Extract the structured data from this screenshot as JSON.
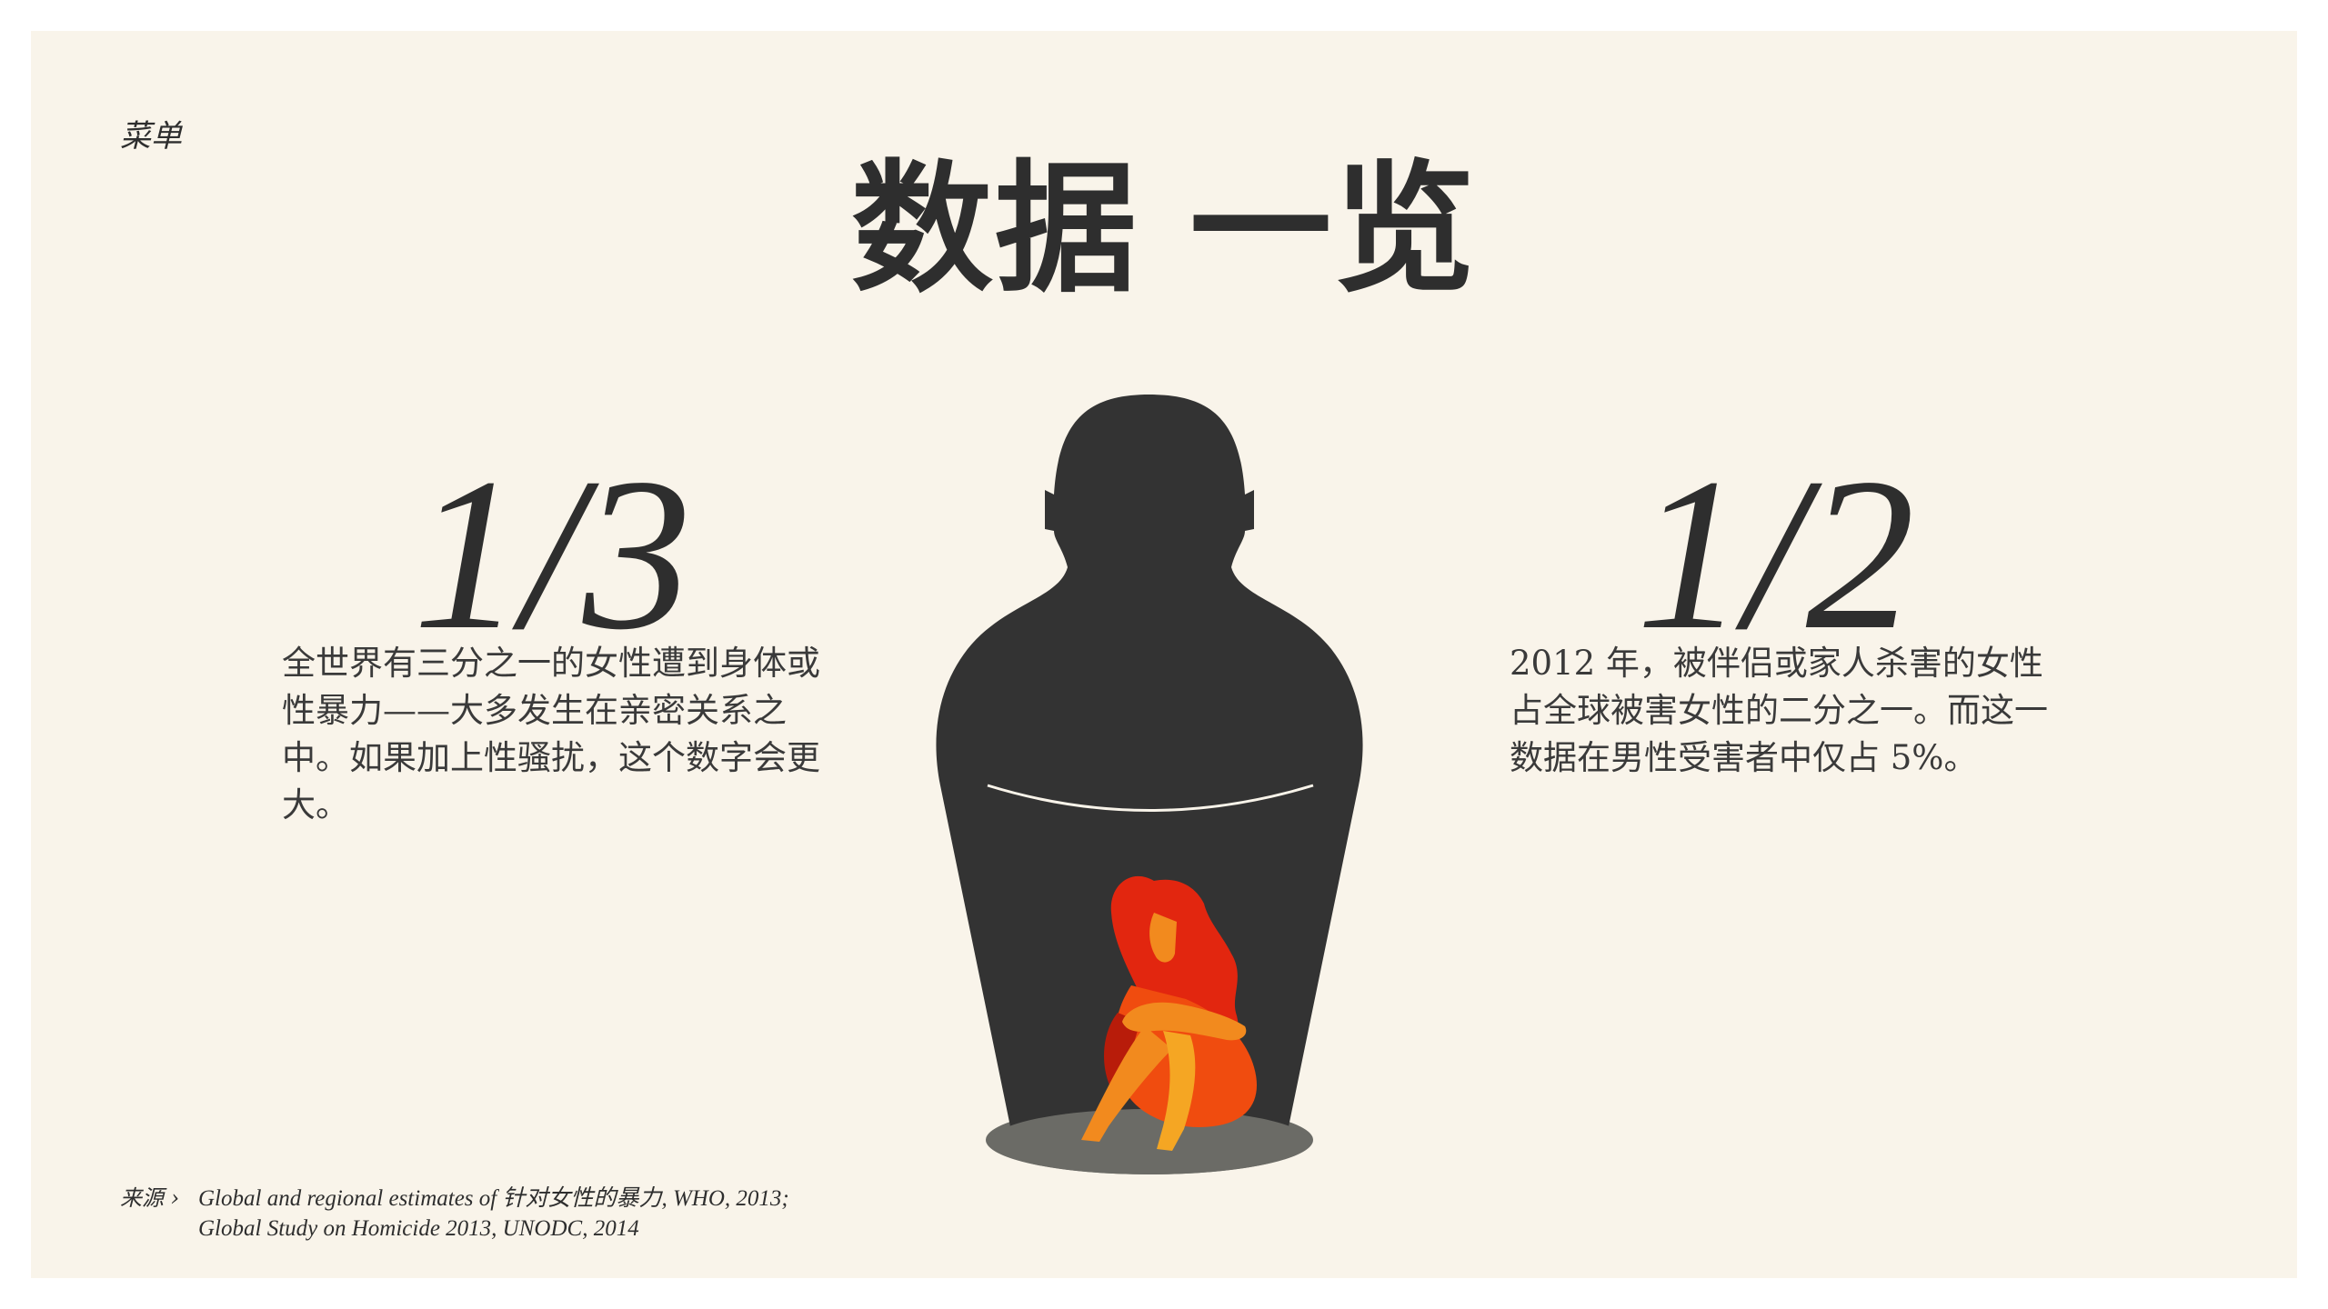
{
  "nav": {
    "menu_label": "菜单"
  },
  "title": "数据 一览",
  "stats": {
    "left": {
      "number": "1/3",
      "text": "全世界有三分之一的女性遭到身体或性暴力——大多发生在亲密关系之中。如果加上性骚扰，这个数字会更大。"
    },
    "right": {
      "number": "1/2",
      "text": "2012 年，被伴侣或家人杀害的女性占全球被害女性的二分之一。而这一数据在男性受害者中仅占 5%。"
    }
  },
  "source": {
    "label": "来源 ›",
    "line1": "Global and regional estimates of 针对女性的暴力, WHO, 2013;",
    "line2": "Global Study on Homicide 2013, UNODC, 2014"
  },
  "colors": {
    "background": "#f9f4ea",
    "text": "#2e2e2e",
    "silhouette": "#333333",
    "floor": "#6b6b66",
    "hair": "#e2260f",
    "skin": "#f28a1e",
    "dress": "#f04c0f"
  }
}
